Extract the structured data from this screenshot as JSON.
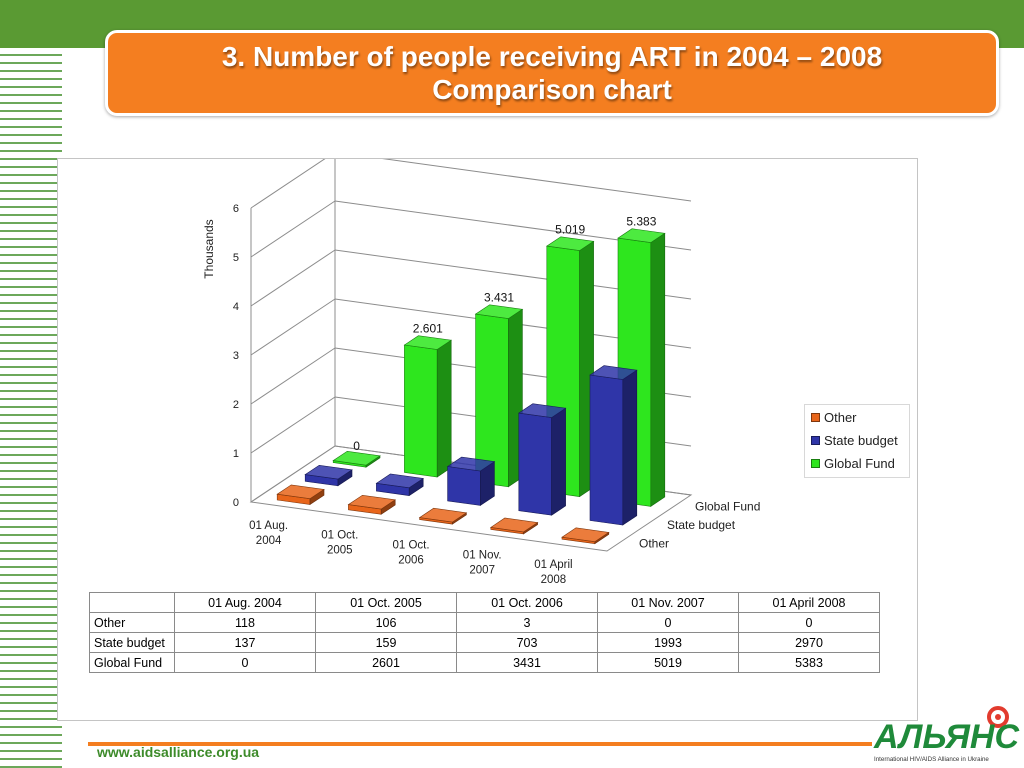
{
  "slide": {
    "title_line1": "3. Number of people receiving ART in 2004 – 2008",
    "title_line2": "Comparison chart",
    "footer_url": "www.aidsalliance.org.ua",
    "logo_text": "АЛЬЯНС",
    "logo_subtext": "International HIV/AIDS Alliance in Ukraine"
  },
  "colors": {
    "top_bar": "#5a9a33",
    "title_box": "#f47e20",
    "other": "#e8651a",
    "state_budget": "#2f35a8",
    "global_fund": "#2ee61e",
    "footer_url": "#3d8b2a"
  },
  "chart_data": {
    "type": "bar",
    "variant": "3d-column",
    "ylabel": "Thousands",
    "ylim": [
      0,
      6
    ],
    "yticks": [
      "0",
      "1",
      "2",
      "3",
      "4",
      "5",
      "6"
    ],
    "grid": true,
    "legend_position": "right",
    "categories": [
      "01 Aug. 2004",
      "01 Oct. 2005",
      "01 Oct. 2006",
      "01 Nov. 2007",
      "01 April 2008"
    ],
    "series": [
      {
        "name": "Other",
        "values": [
          0.118,
          0.106,
          0.003,
          0,
          0
        ]
      },
      {
        "name": "State budget",
        "values": [
          0.137,
          0.159,
          0.703,
          1.993,
          2.97
        ]
      },
      {
        "name": "Global Fund",
        "values": [
          0,
          2.601,
          3.431,
          5.019,
          5.383
        ]
      }
    ],
    "data_labels": {
      "Global Fund": [
        "0",
        "2.601",
        "3.431",
        "5.019",
        "5.383"
      ]
    }
  },
  "table": {
    "headers": [
      "01 Aug. 2004",
      "01 Oct. 2005",
      "01 Oct. 2006",
      "01 Nov. 2007",
      "01 April 2008"
    ],
    "rows": [
      {
        "label": "Other",
        "values": [
          "118",
          "106",
          "3",
          "0",
          "0"
        ]
      },
      {
        "label": "State budget",
        "values": [
          "137",
          "159",
          "703",
          "1993",
          "2970"
        ]
      },
      {
        "label": "Global Fund",
        "values": [
          "0",
          "2601",
          "3431",
          "5019",
          "5383"
        ]
      }
    ]
  }
}
